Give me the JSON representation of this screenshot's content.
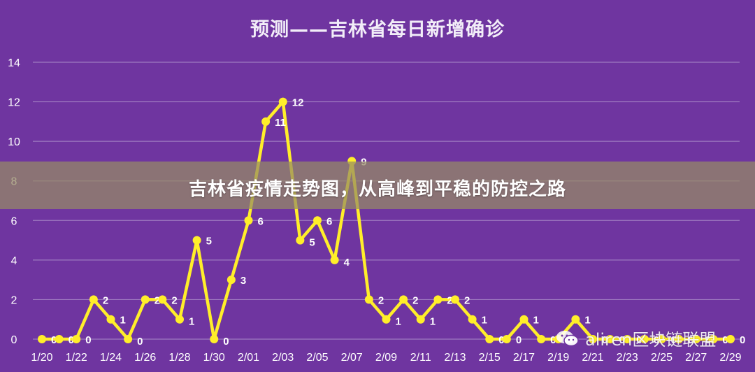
{
  "chart_data": {
    "type": "line",
    "title": "预测——吉林省每日新增确诊",
    "x": [
      "1/20",
      "1/21",
      "1/22",
      "1/23",
      "1/24",
      "1/25",
      "1/26",
      "1/27",
      "1/28",
      "1/29",
      "1/30",
      "1/31",
      "2/01",
      "2/02",
      "2/03",
      "2/04",
      "2/05",
      "2/06",
      "2/07",
      "2/08",
      "2/09",
      "2/10",
      "2/11",
      "2/12",
      "2/13",
      "2/14",
      "2/15",
      "2/16",
      "2/17",
      "2/18",
      "2/19",
      "2/20",
      "2/21",
      "2/22",
      "2/23",
      "2/24",
      "2/25",
      "2/26",
      "2/27",
      "2/28",
      "2/29"
    ],
    "tick_labels": [
      "1/20",
      "1/22",
      "1/24",
      "1/26",
      "1/28",
      "1/30",
      "2/01",
      "2/03",
      "2/05",
      "2/07",
      "2/09",
      "2/11",
      "2/13",
      "2/15",
      "2/17",
      "2/19",
      "2/21",
      "2/23",
      "2/25",
      "2/27",
      "2/29"
    ],
    "series": [
      {
        "values": [
          0,
          0,
          0,
          2,
          1,
          0,
          2,
          2,
          1,
          5,
          0,
          3,
          6,
          11,
          12,
          5,
          6,
          4,
          9,
          2,
          1,
          2,
          1,
          2,
          2,
          1,
          0,
          0,
          1,
          0,
          0,
          1,
          0,
          0,
          0,
          0,
          0,
          0,
          0,
          0,
          0
        ]
      }
    ],
    "ylim": [
      0,
      14
    ],
    "yticks": [
      0,
      2,
      4,
      6,
      8,
      10,
      12,
      14
    ],
    "grid": true,
    "colors": {
      "background": "#6f35a0",
      "line": "#ffee2a",
      "grid": "#9e7ac0",
      "labels": "#ffffff"
    }
  },
  "banner": {
    "text": "吉林省疫情走势图，从高峰到平稳的防控之路"
  },
  "watermark": {
    "icon": "wechat-icon",
    "text": "aliren区块链联盟"
  }
}
